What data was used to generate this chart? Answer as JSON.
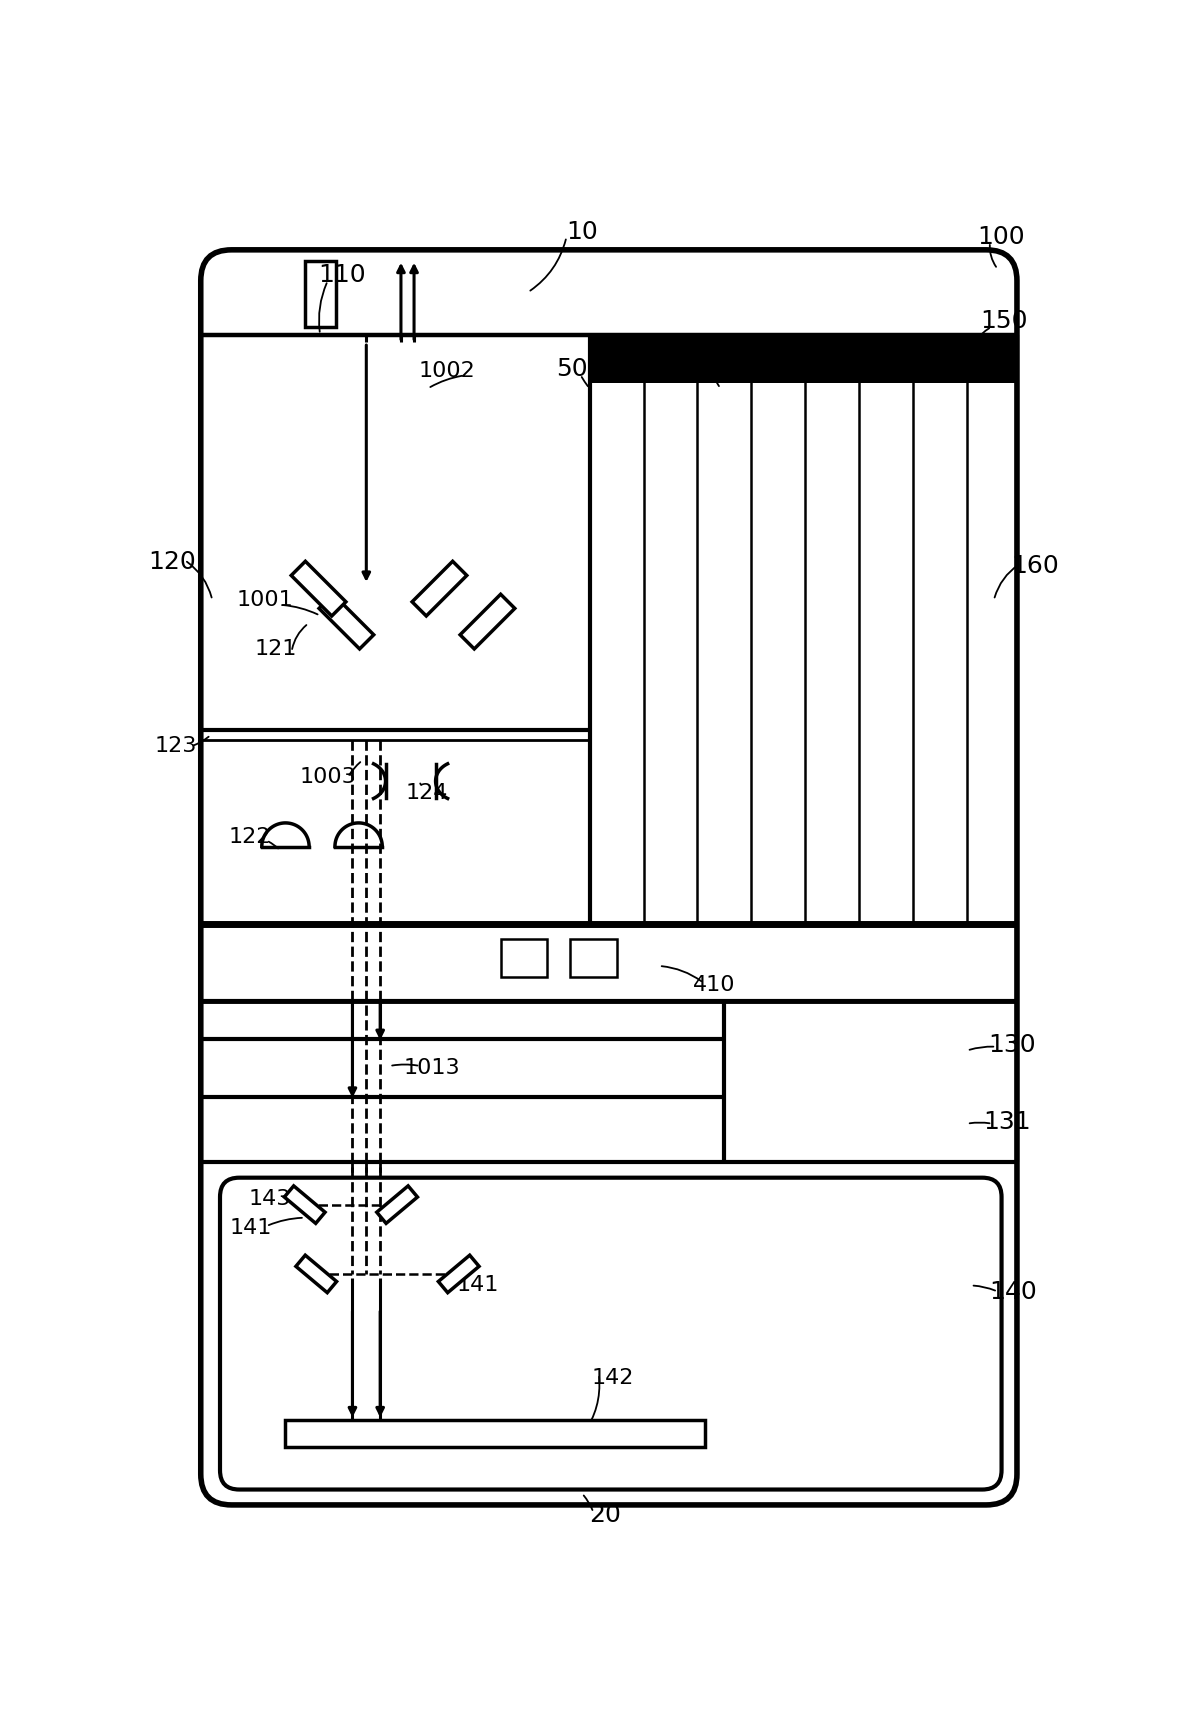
{
  "bg_color": "#ffffff",
  "line_color": "#000000",
  "fig_width": 11.82,
  "fig_height": 17.29,
  "dpi": 100
}
